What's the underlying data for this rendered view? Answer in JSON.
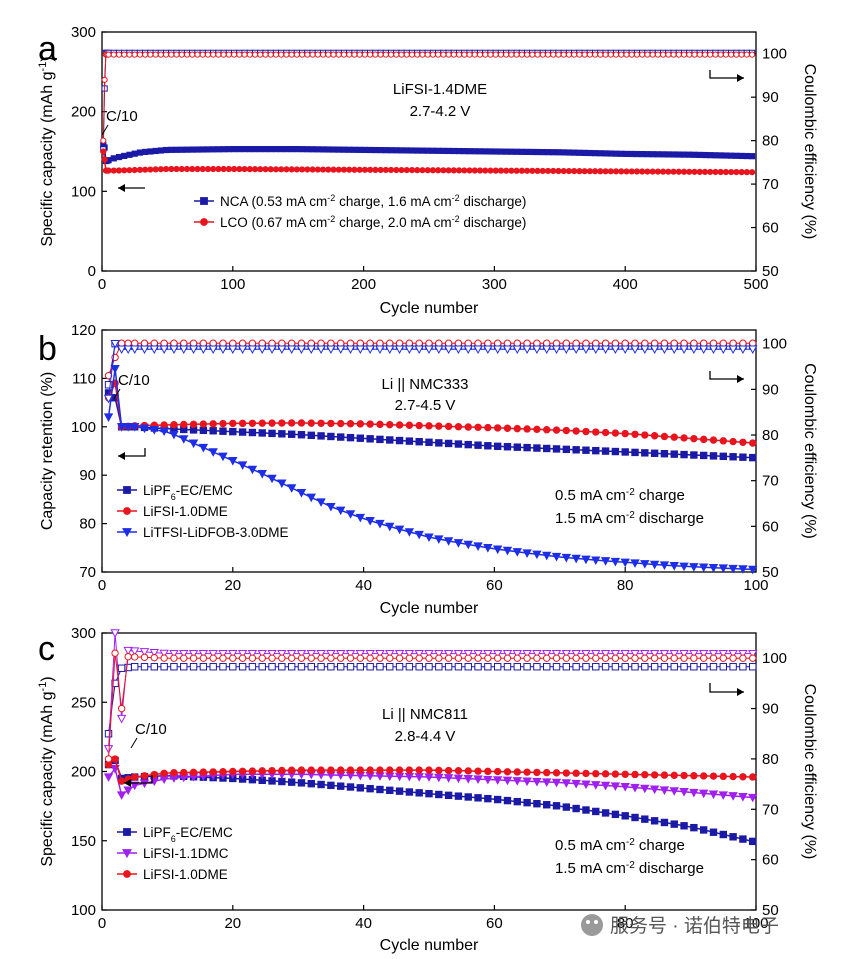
{
  "chart_data": [
    {
      "panel": "a",
      "type": "line",
      "xlabel": "Cycle number",
      "ylabel": "Specific capacity (mAh g",
      "ylabel_sup": "-1",
      "ylabel_end": ")",
      "ylabel_right": "Coulombic efficiency (%)",
      "xlim": [
        0,
        500
      ],
      "ylim": [
        0,
        300
      ],
      "ylim_right": [
        50,
        105
      ],
      "xticks": [
        0,
        100,
        200,
        300,
        400,
        500
      ],
      "yticks": [
        0,
        100,
        200,
        300
      ],
      "yticks_right": [
        50,
        60,
        70,
        80,
        90,
        100
      ],
      "annotation": "LiFSI-1.4DME",
      "annotation2": "2.7-4.2 V",
      "rate_label": "C/10",
      "series": [
        {
          "name": "NCA (0.53 mA cm",
          "name_sup": "-2",
          "name_mid": " charge, 1.6 mA cm",
          "name_sup2": "-2",
          "name_end": " discharge)",
          "color": "#1a1aa6",
          "marker": "square",
          "capacity": [
            [
              1,
              158
            ],
            [
              2,
              155
            ],
            [
              3,
              138
            ],
            [
              10,
              142
            ],
            [
              30,
              149
            ],
            [
              50,
              152
            ],
            [
              100,
              153
            ],
            [
              150,
              153
            ],
            [
              200,
              152
            ],
            [
              250,
              151
            ],
            [
              300,
              150
            ],
            [
              350,
              149
            ],
            [
              400,
              147
            ],
            [
              450,
              146
            ],
            [
              500,
              144
            ]
          ],
          "ce": [
            [
              1,
              78
            ],
            [
              2,
              92
            ],
            [
              3,
              100.2
            ],
            [
              500,
              100.2
            ]
          ]
        },
        {
          "name": "LCO (0.67 mA cm",
          "name_sup": "-2",
          "name_mid": " charge, 2.0 mA cm",
          "name_sup2": "-2",
          "name_end": " discharge)",
          "color": "#e8141e",
          "marker": "circle",
          "capacity": [
            [
              1,
              150
            ],
            [
              2,
              140
            ],
            [
              3,
              126
            ],
            [
              10,
              126
            ],
            [
              50,
              128
            ],
            [
              100,
              128
            ],
            [
              200,
              127
            ],
            [
              300,
              126
            ],
            [
              400,
              125
            ],
            [
              500,
              124
            ]
          ],
          "ce": [
            [
              1,
              80
            ],
            [
              2,
              94
            ],
            [
              3,
              99.8
            ],
            [
              500,
              99.8
            ]
          ]
        }
      ]
    },
    {
      "panel": "b",
      "type": "line",
      "xlabel": "Cycle number",
      "ylabel": "Capacity retention (%)",
      "ylabel_right": "Coulombic efficiency (%)",
      "xlim": [
        0,
        100
      ],
      "ylim": [
        70,
        120
      ],
      "ylim_right": [
        50,
        103
      ],
      "xticks": [
        0,
        20,
        40,
        60,
        80,
        100
      ],
      "yticks": [
        70,
        80,
        90,
        100,
        110,
        120
      ],
      "yticks_right": [
        50,
        60,
        70,
        80,
        90,
        100
      ],
      "annotation": "Li || NMC333",
      "annotation2": "2.7-4.5 V",
      "rate_label": "C/10",
      "rate_text1": "0.5 mA cm",
      "rate_text1_sup": "-2",
      "rate_text1_end": " charge",
      "rate_text2": "1.5 mA cm",
      "rate_text2_sup": "-2",
      "rate_text2_end": " discharge",
      "series": [
        {
          "name": "LiPF",
          "name_sub": "6",
          "name_end": "-EC/EMC",
          "color": "#1a1aa6",
          "marker": "square",
          "capacity": [
            [
              1,
              107
            ],
            [
              2,
              106
            ],
            [
              3,
              100
            ],
            [
              5,
              100
            ],
            [
              10,
              99.6
            ],
            [
              20,
              99
            ],
            [
              30,
              98.4
            ],
            [
              40,
              97.6
            ],
            [
              50,
              96.8
            ],
            [
              60,
              96
            ],
            [
              70,
              95.4
            ],
            [
              80,
              94.8
            ],
            [
              90,
              94.2
            ],
            [
              100,
              93.6
            ]
          ],
          "ce": [
            [
              1,
              91
            ],
            [
              2,
              100
            ],
            [
              3,
              99.5
            ],
            [
              100,
              99.5
            ]
          ]
        },
        {
          "name": "LiFSI-1.0DME",
          "color": "#e8141e",
          "marker": "circle",
          "capacity": [
            [
              1,
              106
            ],
            [
              2,
              109
            ],
            [
              3,
              100
            ],
            [
              5,
              100.2
            ],
            [
              10,
              100.4
            ],
            [
              20,
              100.7
            ],
            [
              30,
              100.8
            ],
            [
              40,
              100.6
            ],
            [
              50,
              100.2
            ],
            [
              60,
              99.8
            ],
            [
              70,
              99.3
            ],
            [
              80,
              98.6
            ],
            [
              90,
              97.6
            ],
            [
              100,
              96.6
            ]
          ],
          "ce": [
            [
              1,
              93
            ],
            [
              2,
              97
            ],
            [
              3,
              100.1
            ],
            [
              100,
              100.1
            ]
          ]
        },
        {
          "name": "LiTFSI-LiDFOB-3.0DME",
          "color": "#1e2ee6",
          "marker": "triangle-down",
          "capacity": [
            [
              1,
              102
            ],
            [
              2,
              112
            ],
            [
              3,
              100
            ],
            [
              5,
              100
            ],
            [
              10,
              99
            ],
            [
              15,
              96
            ],
            [
              20,
              93
            ],
            [
              25,
              90
            ],
            [
              30,
              86.7
            ],
            [
              35,
              83.5
            ],
            [
              40,
              81
            ],
            [
              45,
              79
            ],
            [
              50,
              77.2
            ],
            [
              55,
              75.9
            ],
            [
              60,
              74.8
            ],
            [
              65,
              73.9
            ],
            [
              70,
              73.1
            ],
            [
              75,
              72.5
            ],
            [
              80,
              72
            ],
            [
              85,
              71.5
            ],
            [
              90,
              71.1
            ],
            [
              95,
              70.8
            ],
            [
              100,
              70.5
            ]
          ],
          "ce": [
            [
              1,
              88
            ],
            [
              2,
              100
            ],
            [
              3,
              98.8
            ],
            [
              100,
              98.8
            ]
          ]
        }
      ]
    },
    {
      "panel": "c",
      "type": "line",
      "xlabel": "Cycle number",
      "ylabel": "Specific capacity (mAh g",
      "ylabel_sup": "-1",
      "ylabel_end": ")",
      "ylabel_right": "Coulombic efficiency (%)",
      "xlim": [
        0,
        100
      ],
      "ylim": [
        100,
        300
      ],
      "ylim_right": [
        50,
        105
      ],
      "xticks": [
        0,
        20,
        40,
        60,
        80,
        100
      ],
      "yticks": [
        100,
        150,
        200,
        250,
        300
      ],
      "yticks_right": [
        50,
        60,
        70,
        80,
        90,
        100
      ],
      "annotation": "Li || NMC811",
      "annotation2": "2.8-4.4 V",
      "rate_label": "C/10",
      "rate_text1": "0.5 mA cm",
      "rate_text1_sup": "-2",
      "rate_text1_end": " charge",
      "rate_text2": "1.5 mA cm",
      "rate_text2_sup": "-2",
      "rate_text2_end": " discharge",
      "series": [
        {
          "name": "LiPF",
          "name_sub": "6",
          "name_end": "-EC/EMC",
          "color": "#1a1aa6",
          "marker": "square",
          "capacity": [
            [
              1,
              205
            ],
            [
              2,
              208
            ],
            [
              3,
              195
            ],
            [
              5,
              196
            ],
            [
              10,
              197
            ],
            [
              20,
              195
            ],
            [
              30,
              192
            ],
            [
              40,
              188
            ],
            [
              50,
              184
            ],
            [
              60,
              180
            ],
            [
              70,
              175
            ],
            [
              80,
              168
            ],
            [
              90,
              160
            ],
            [
              100,
              149
            ]
          ],
          "ce": [
            [
              1,
              85
            ],
            [
              2,
              95
            ],
            [
              3,
              98
            ],
            [
              5,
              98.3
            ],
            [
              100,
              98.3
            ]
          ]
        },
        {
          "name": "LiFSI-1.1DMC",
          "color": "#a020f0",
          "marker": "triangle-down",
          "capacity": [
            [
              1,
              196
            ],
            [
              2,
              202
            ],
            [
              3,
              183
            ],
            [
              5,
              190
            ],
            [
              10,
              195
            ],
            [
              20,
              198
            ],
            [
              30,
              198
            ],
            [
              40,
              197
            ],
            [
              50,
              196
            ],
            [
              60,
              194
            ],
            [
              70,
              192
            ],
            [
              80,
              189
            ],
            [
              90,
              185
            ],
            [
              100,
              181
            ]
          ],
          "ce": [
            [
              1,
              82
            ],
            [
              2,
              105
            ],
            [
              3,
              88
            ],
            [
              4,
              101.5
            ],
            [
              10,
              100.9
            ],
            [
              100,
              100.9
            ]
          ]
        },
        {
          "name": "LiFSI-1.0DME",
          "color": "#e8141e",
          "marker": "circle",
          "capacity": [
            [
              1,
              205
            ],
            [
              2,
              209
            ],
            [
              3,
              193
            ],
            [
              5,
              196
            ],
            [
              10,
              199
            ],
            [
              20,
              200
            ],
            [
              30,
              201
            ],
            [
              40,
              201
            ],
            [
              50,
              201
            ],
            [
              60,
              200
            ],
            [
              70,
              199
            ],
            [
              80,
              198
            ],
            [
              90,
              197
            ],
            [
              100,
              196
            ]
          ],
          "ce": [
            [
              1,
              80
            ],
            [
              2,
              101
            ],
            [
              3,
              90
            ],
            [
              4,
              100.3
            ],
            [
              10,
              100
            ],
            [
              100,
              100
            ]
          ]
        }
      ]
    }
  ],
  "watermark": "服务号 · 诺伯特电子"
}
